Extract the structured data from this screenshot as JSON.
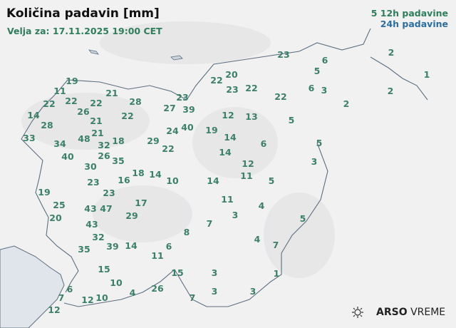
{
  "header": {
    "title": "Količina padavin [mm]",
    "valid": "Velja za: 17.11.2025 19:00 CET"
  },
  "legend": {
    "sample_value": "5",
    "label_12h": "12h padavine",
    "label_24h": "24h padavine",
    "color_12h": "#2e7d5b",
    "color_24h": "#2a6ea3"
  },
  "logo": {
    "brand": "ARSO",
    "product": "VREME",
    "icon": "sun-cloud-icon"
  },
  "stations": [
    "19",
    "11",
    "21",
    "22",
    "22",
    "22",
    "28",
    "26",
    "21",
    "22",
    "14",
    "28",
    "21",
    "33",
    "34",
    "48",
    "32",
    "18",
    "26",
    "35",
    "29",
    "40",
    "30",
    "16",
    "18",
    "14",
    "23",
    "19",
    "23",
    "25",
    "43",
    "47",
    "17",
    "29",
    "20",
    "43",
    "32",
    "39",
    "14",
    "35",
    "8",
    "7",
    "6",
    "11",
    "15",
    "15",
    "10",
    "4",
    "26",
    "6",
    "7",
    "12",
    "10",
    "12",
    "7",
    "3",
    "3",
    "3",
    "1",
    "7",
    "4",
    "3",
    "4",
    "11",
    "5",
    "5",
    "14",
    "11",
    "12",
    "10",
    "14",
    "6",
    "3",
    "5",
    "14",
    "19",
    "24",
    "40",
    "27",
    "23",
    "39",
    "22",
    "12",
    "13",
    "22",
    "20",
    "23",
    "22",
    "22",
    "5",
    "23",
    "5",
    "6",
    "6",
    "3",
    "2",
    "2",
    "1",
    "2"
  ]
}
